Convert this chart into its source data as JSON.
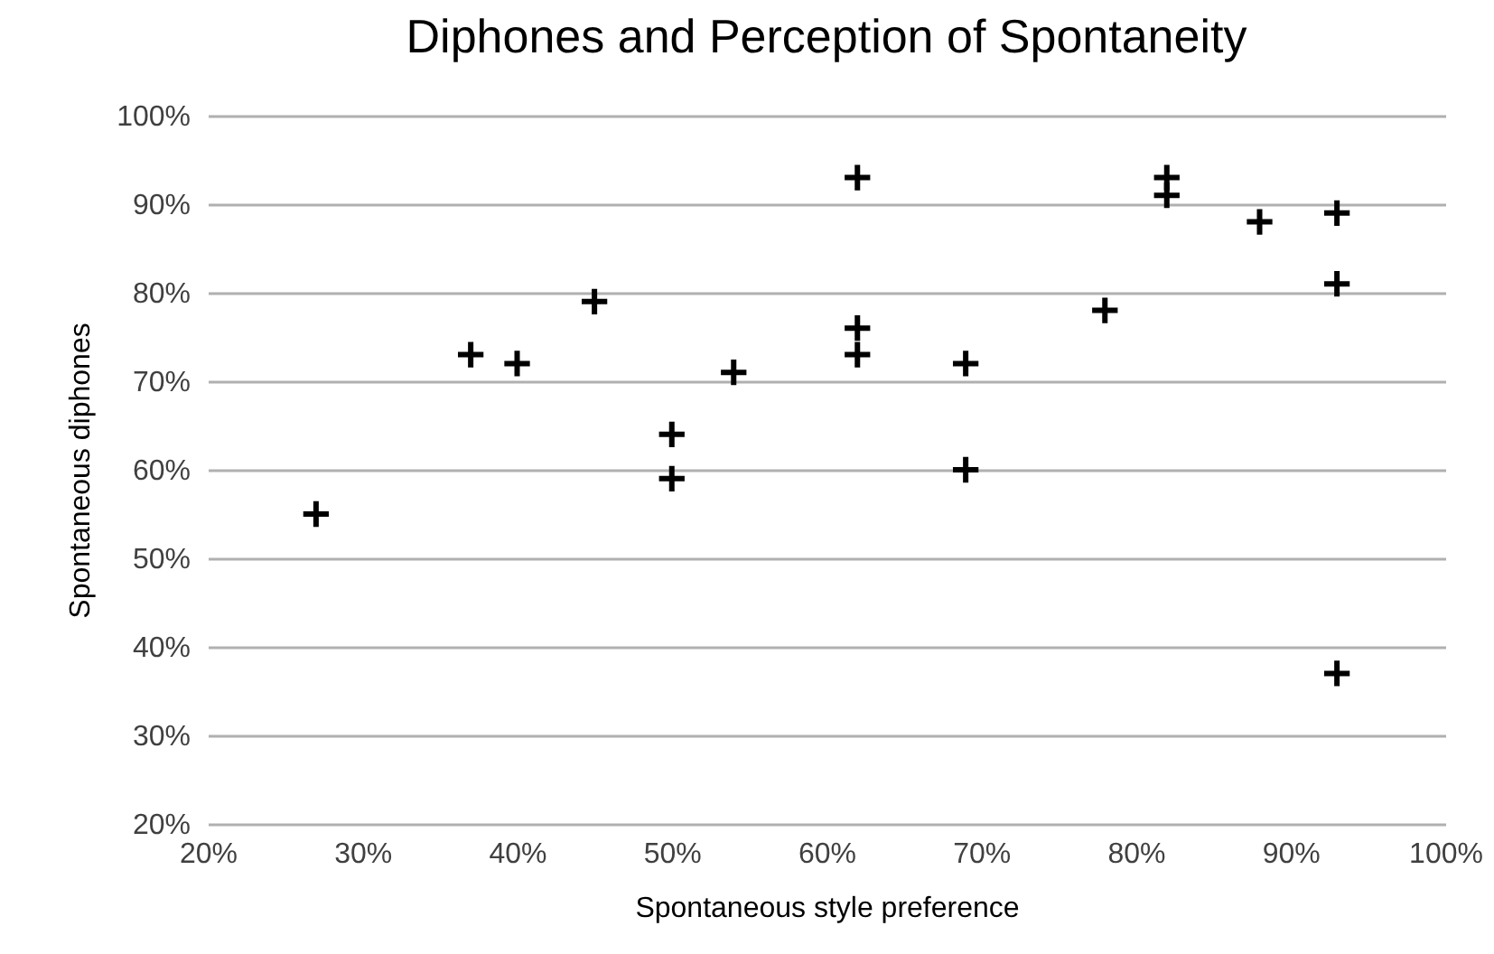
{
  "chart_data": {
    "type": "scatter",
    "title": "Diphones and Perception of Spontaneity",
    "xlabel": "Spontaneous style preference",
    "ylabel": "Spontaneous diphones",
    "x": [
      27,
      37,
      40,
      45,
      50,
      50,
      54,
      62,
      62,
      62,
      69,
      69,
      78,
      82,
      82,
      88,
      93,
      93,
      93
    ],
    "series": [
      {
        "color": "#000000",
        "values": [
          55,
          73,
          72,
          79,
          64,
          59,
          71,
          93,
          76,
          73,
          72,
          60,
          78,
          93,
          91,
          88,
          89,
          81,
          37
        ]
      }
    ],
    "xlim": [
      20,
      100
    ],
    "ylim": [
      20,
      100
    ],
    "xticks": [
      {
        "value": 20,
        "label": "20%"
      },
      {
        "value": 30,
        "label": "30%"
      },
      {
        "value": 40,
        "label": "40%"
      },
      {
        "value": 50,
        "label": "50%"
      },
      {
        "value": 60,
        "label": "60%"
      },
      {
        "value": 70,
        "label": "70%"
      },
      {
        "value": 80,
        "label": "80%"
      },
      {
        "value": 90,
        "label": "90%"
      },
      {
        "value": 100,
        "label": "100%"
      }
    ],
    "yticks": [
      {
        "value": 20,
        "label": "20%"
      },
      {
        "value": 30,
        "label": "30%"
      },
      {
        "value": 40,
        "label": "40%"
      },
      {
        "value": 50,
        "label": "50%"
      },
      {
        "value": 60,
        "label": "60%"
      },
      {
        "value": 70,
        "label": "70%"
      },
      {
        "value": 80,
        "label": "80%"
      },
      {
        "value": 90,
        "label": "90%"
      },
      {
        "value": 100,
        "label": "100%"
      }
    ],
    "grid": "y",
    "marker": "cross"
  }
}
